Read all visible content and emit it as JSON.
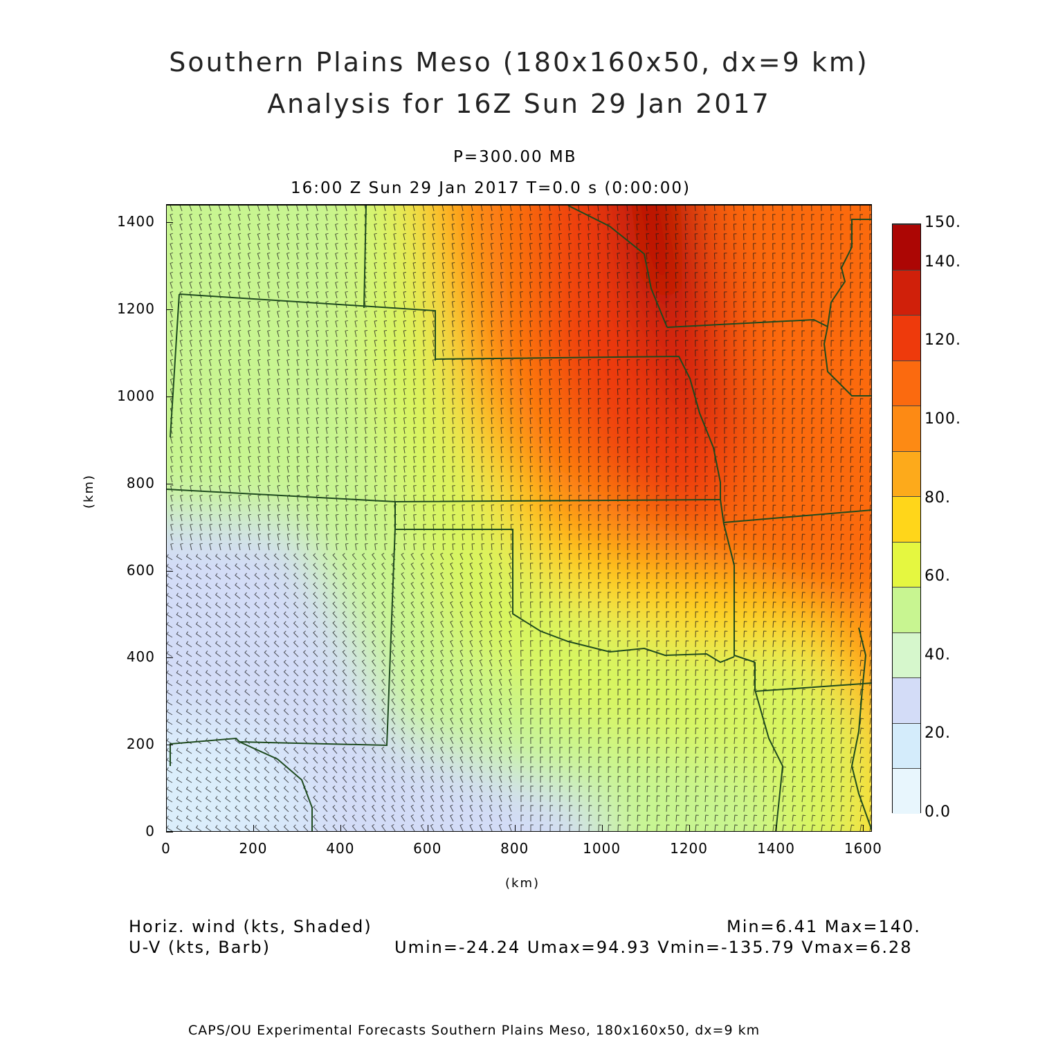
{
  "title": {
    "line1": "Southern Plains Meso (180x160x50, dx=9 km)",
    "line2": "Analysis for 16Z Sun 29 Jan 2017"
  },
  "subtitle": {
    "level": "P=300.00 MB",
    "time": "16:00 Z Sun 29 Jan 2017    T=0.0 s (0:00:00)"
  },
  "axes": {
    "xlabel": "(km)",
    "ylabel": "(km)",
    "x_ticks": [
      "0",
      "200",
      "400",
      "600",
      "800",
      "1000",
      "1200",
      "1400",
      "1600"
    ],
    "y_ticks": [
      "0",
      "200",
      "400",
      "600",
      "800",
      "1000",
      "1200",
      "1400"
    ],
    "xlim": [
      0,
      1620
    ],
    "ylim": [
      0,
      1440
    ]
  },
  "colorbar": {
    "labels": [
      "150.",
      "140.",
      "120.",
      "100.",
      "80.",
      "60.",
      "40.",
      "20.",
      "0.0"
    ],
    "colors": [
      "#e8f6fd",
      "#d4ecfb",
      "#d3dcf7",
      "#d6f7cc",
      "#c8f591",
      "#e5f740",
      "#ffd61a",
      "#fdaa1b",
      "#fd8a14",
      "#fb6a0f",
      "#ee3a0c",
      "#d0200a",
      "#ac0604"
    ]
  },
  "footer": {
    "field1": "Horiz. wind (kts, Shaded)",
    "field2": "U-V (kts, Barb)",
    "minmax": "Min=6.41 Max=140.",
    "uv_stats": "Umin=-24.24 Umax=94.93 Vmin=-135.79 Vmax=6.28",
    "credit": "CAPS/OU Experimental Forecasts  Southern Plains Meso, 180x160x50, dx=9 km"
  },
  "colors": {
    "border": "#1e4a1e",
    "barb": "#1a1a1a"
  }
}
